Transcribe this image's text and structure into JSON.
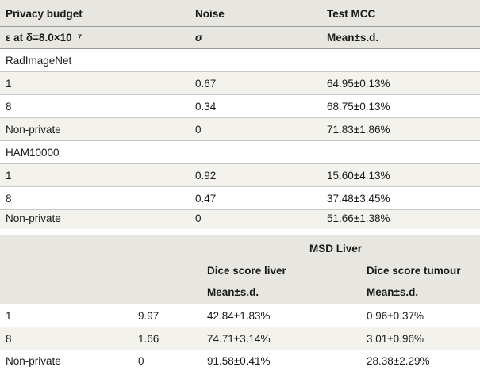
{
  "table1": {
    "header": {
      "col1": "Privacy budget",
      "col2": "Noise",
      "col3": "Test MCC"
    },
    "subheader": {
      "col1": "ε at δ=8.0×10⁻⁷",
      "col2": "σ",
      "col3": "Mean±s.d."
    },
    "groups": [
      {
        "name": "RadImageNet",
        "rows": [
          {
            "budget": "1",
            "noise": "0.67",
            "value": "64.95±0.13%"
          },
          {
            "budget": "8",
            "noise": "0.34",
            "value": "68.75±0.13%"
          },
          {
            "budget": "Non-private",
            "noise": "0",
            "value": "71.83±1.86%"
          }
        ]
      },
      {
        "name": "HAM10000",
        "rows": [
          {
            "budget": "1",
            "noise": "0.92",
            "value": "15.60±4.13%"
          },
          {
            "budget": "8",
            "noise": "0.47",
            "value": "37.48±3.45%"
          },
          {
            "budget": "Non-private",
            "noise": "0",
            "value": "51.66±1.38%"
          }
        ]
      }
    ]
  },
  "table2": {
    "dataset": "MSD Liver",
    "col_liver": "Dice score liver",
    "col_tumour": "Dice score tumour",
    "sub_liver": "Mean±s.d.",
    "sub_tumour": "Mean±s.d.",
    "rows": [
      {
        "budget": "1",
        "noise": "9.97",
        "liver": "42.84±1.83%",
        "tumour": "0.96±0.37%"
      },
      {
        "budget": "8",
        "noise": "1.66",
        "liver": "74.71±3.14%",
        "tumour": "3.01±0.96%"
      },
      {
        "budget": "Non-private",
        "noise": "0",
        "liver": "91.58±0.41%",
        "tumour": "28.38±2.29%"
      }
    ]
  }
}
